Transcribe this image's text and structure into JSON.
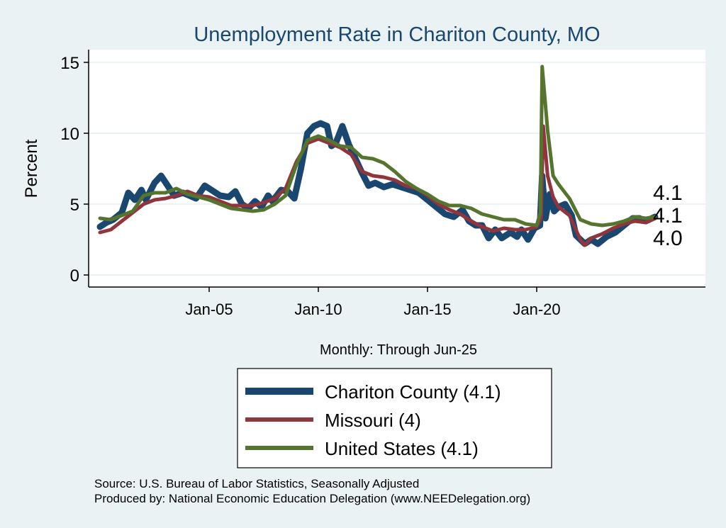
{
  "chart_data": {
    "type": "line",
    "title": "Unemployment Rate in Chariton  County, MO",
    "xlabel": "Monthly: Through Jun-25",
    "ylabel": "Percent",
    "ylim": [
      0,
      15
    ],
    "xlim": [
      1999.5,
      2027.8
    ],
    "yticks": [
      {
        "v": 0,
        "label": "0"
      },
      {
        "v": 5,
        "label": "5"
      },
      {
        "v": 10,
        "label": "10"
      },
      {
        "v": 15,
        "label": "15"
      }
    ],
    "xticks": [
      {
        "v": 2005,
        "label": "Jan-05"
      },
      {
        "v": 2010,
        "label": "Jan-10"
      },
      {
        "v": 2015,
        "label": "Jan-15"
      },
      {
        "v": 2020,
        "label": "Jan-20"
      }
    ],
    "grid": true,
    "legend_position": "bottom",
    "series": [
      {
        "name": "Chariton  County (4.1)",
        "color": "#1a476f",
        "end_label": "4.1",
        "points": [
          [
            2000,
            3.4
          ],
          [
            2000.3,
            3.7
          ],
          [
            2000.6,
            3.9
          ],
          [
            2001,
            4.4
          ],
          [
            2001.3,
            5.8
          ],
          [
            2001.6,
            5.3
          ],
          [
            2001.9,
            6.0
          ],
          [
            2002.1,
            5.3
          ],
          [
            2002.5,
            6.5
          ],
          [
            2002.8,
            7.0
          ],
          [
            2003.1,
            6.3
          ],
          [
            2003.4,
            5.6
          ],
          [
            2003.8,
            5.8
          ],
          [
            2004.1,
            5.6
          ],
          [
            2004.4,
            5.4
          ],
          [
            2004.8,
            6.3
          ],
          [
            2005.1,
            6.0
          ],
          [
            2005.5,
            5.6
          ],
          [
            2005.9,
            5.5
          ],
          [
            2006.2,
            5.9
          ],
          [
            2006.5,
            5.0
          ],
          [
            2006.8,
            4.7
          ],
          [
            2007.1,
            5.2
          ],
          [
            2007.4,
            4.8
          ],
          [
            2007.7,
            5.6
          ],
          [
            2007.9,
            5.2
          ],
          [
            2008.3,
            6.0
          ],
          [
            2008.6,
            5.9
          ],
          [
            2008.9,
            5.4
          ],
          [
            2009.2,
            7.5
          ],
          [
            2009.5,
            10.0
          ],
          [
            2009.8,
            10.5
          ],
          [
            2010.1,
            10.7
          ],
          [
            2010.4,
            10.5
          ],
          [
            2010.6,
            9.1
          ],
          [
            2010.8,
            9.3
          ],
          [
            2011.1,
            10.5
          ],
          [
            2011.4,
            9.2
          ],
          [
            2011.7,
            8.2
          ],
          [
            2012,
            7.2
          ],
          [
            2012.3,
            6.3
          ],
          [
            2012.6,
            6.5
          ],
          [
            2013,
            6.2
          ],
          [
            2013.4,
            6.4
          ],
          [
            2013.8,
            6.2
          ],
          [
            2014.2,
            6.0
          ],
          [
            2014.6,
            5.8
          ],
          [
            2015,
            5.3
          ],
          [
            2015.4,
            4.8
          ],
          [
            2015.8,
            4.3
          ],
          [
            2016.2,
            4.1
          ],
          [
            2016.6,
            4.6
          ],
          [
            2016.9,
            3.8
          ],
          [
            2017.2,
            3.5
          ],
          [
            2017.5,
            3.5
          ],
          [
            2017.8,
            2.6
          ],
          [
            2018.1,
            3.2
          ],
          [
            2018.4,
            2.6
          ],
          [
            2018.8,
            3.0
          ],
          [
            2019.1,
            2.7
          ],
          [
            2019.3,
            3.2
          ],
          [
            2019.6,
            2.5
          ],
          [
            2019.9,
            3.3
          ],
          [
            2020.15,
            3.5
          ],
          [
            2020.25,
            7.0
          ],
          [
            2020.4,
            4.0
          ],
          [
            2020.6,
            5.7
          ],
          [
            2020.8,
            4.5
          ],
          [
            2021.0,
            4.8
          ],
          [
            2021.3,
            5.0
          ],
          [
            2021.6,
            4.2
          ],
          [
            2021.8,
            2.8
          ],
          [
            2022.2,
            2.2
          ],
          [
            2022.5,
            2.5
          ],
          [
            2022.8,
            2.2
          ],
          [
            2023.2,
            2.7
          ],
          [
            2023.6,
            3.0
          ],
          [
            2024,
            3.5
          ],
          [
            2024.4,
            4.0
          ],
          [
            2024.7,
            4.0
          ],
          [
            2025,
            3.8
          ],
          [
            2025.42,
            4.1
          ]
        ]
      },
      {
        "name": "Missouri (4)",
        "color": "#90353b",
        "end_label": "4.0",
        "points": [
          [
            2000,
            3.0
          ],
          [
            2000.5,
            3.2
          ],
          [
            2001,
            3.8
          ],
          [
            2001.5,
            4.4
          ],
          [
            2002,
            5.0
          ],
          [
            2002.5,
            5.3
          ],
          [
            2003,
            5.4
          ],
          [
            2003.5,
            5.6
          ],
          [
            2004,
            5.9
          ],
          [
            2004.5,
            5.6
          ],
          [
            2005,
            5.5
          ],
          [
            2005.5,
            5.2
          ],
          [
            2006,
            4.9
          ],
          [
            2006.5,
            4.9
          ],
          [
            2007,
            4.9
          ],
          [
            2007.5,
            5.1
          ],
          [
            2008,
            5.4
          ],
          [
            2008.5,
            6.1
          ],
          [
            2009,
            8.0
          ],
          [
            2009.5,
            9.3
          ],
          [
            2010,
            9.6
          ],
          [
            2010.5,
            9.3
          ],
          [
            2011,
            9.0
          ],
          [
            2011.5,
            8.5
          ],
          [
            2012,
            7.3
          ],
          [
            2012.5,
            7.0
          ],
          [
            2013,
            6.9
          ],
          [
            2013.5,
            6.7
          ],
          [
            2014,
            6.3
          ],
          [
            2014.5,
            6.1
          ],
          [
            2015,
            5.6
          ],
          [
            2015.5,
            5.0
          ],
          [
            2016,
            4.6
          ],
          [
            2016.5,
            4.3
          ],
          [
            2017,
            3.8
          ],
          [
            2017.5,
            3.4
          ],
          [
            2018,
            3.1
          ],
          [
            2018.5,
            3.3
          ],
          [
            2019,
            3.2
          ],
          [
            2019.5,
            3.2
          ],
          [
            2020,
            3.4
          ],
          [
            2020.2,
            4.0
          ],
          [
            2020.3,
            10.5
          ],
          [
            2020.5,
            7.0
          ],
          [
            2020.75,
            5.5
          ],
          [
            2021,
            4.8
          ],
          [
            2021.5,
            4.2
          ],
          [
            2022,
            2.5
          ],
          [
            2022.2,
            2.1
          ],
          [
            2022.5,
            2.6
          ],
          [
            2023,
            2.9
          ],
          [
            2023.5,
            3.3
          ],
          [
            2024,
            3.6
          ],
          [
            2024.5,
            3.8
          ],
          [
            2025,
            3.7
          ],
          [
            2025.42,
            4.0
          ]
        ]
      },
      {
        "name": "United States (4.1)",
        "color": "#55752f",
        "end_label": "4.1",
        "points": [
          [
            2000,
            4.0
          ],
          [
            2000.5,
            3.9
          ],
          [
            2001,
            4.2
          ],
          [
            2001.5,
            4.5
          ],
          [
            2002,
            5.6
          ],
          [
            2002.5,
            5.8
          ],
          [
            2003,
            5.8
          ],
          [
            2003.5,
            6.1
          ],
          [
            2004,
            5.7
          ],
          [
            2004.5,
            5.5
          ],
          [
            2005,
            5.3
          ],
          [
            2005.5,
            5.0
          ],
          [
            2006,
            4.7
          ],
          [
            2006.5,
            4.6
          ],
          [
            2007,
            4.5
          ],
          [
            2007.5,
            4.6
          ],
          [
            2008,
            5.0
          ],
          [
            2008.5,
            5.6
          ],
          [
            2009,
            7.8
          ],
          [
            2009.5,
            9.5
          ],
          [
            2010,
            9.8
          ],
          [
            2010.5,
            9.5
          ],
          [
            2011,
            9.1
          ],
          [
            2011.5,
            9.0
          ],
          [
            2012,
            8.3
          ],
          [
            2012.5,
            8.2
          ],
          [
            2013,
            7.9
          ],
          [
            2013.5,
            7.3
          ],
          [
            2014,
            6.6
          ],
          [
            2014.5,
            6.1
          ],
          [
            2015,
            5.7
          ],
          [
            2015.5,
            5.2
          ],
          [
            2016,
            4.9
          ],
          [
            2016.5,
            4.9
          ],
          [
            2017,
            4.7
          ],
          [
            2017.5,
            4.3
          ],
          [
            2018,
            4.1
          ],
          [
            2018.5,
            3.9
          ],
          [
            2019,
            3.9
          ],
          [
            2019.5,
            3.6
          ],
          [
            2020,
            3.5
          ],
          [
            2020.17,
            4.4
          ],
          [
            2020.25,
            14.7
          ],
          [
            2020.5,
            10.2
          ],
          [
            2020.75,
            7.0
          ],
          [
            2021,
            6.4
          ],
          [
            2021.5,
            5.4
          ],
          [
            2022,
            3.9
          ],
          [
            2022.5,
            3.6
          ],
          [
            2023,
            3.5
          ],
          [
            2023.5,
            3.6
          ],
          [
            2024,
            3.8
          ],
          [
            2024.5,
            4.1
          ],
          [
            2025,
            4.0
          ],
          [
            2025.42,
            4.1
          ]
        ]
      }
    ],
    "source": "Source: U.S. Bureau of Labor Statistics, Seasonally Adjusted",
    "produced_by": "Produced by: National Economic Education Delegation (www.NEEDelegation.org)"
  }
}
